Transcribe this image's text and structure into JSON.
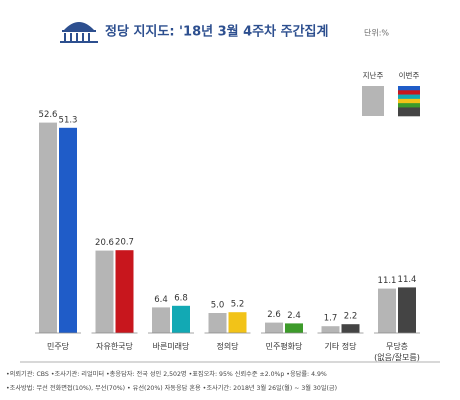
{
  "chart_data": {
    "type": "bar",
    "title": "정당 지지도: '18년 3월 4주차 주간집계",
    "unit": "단위:%",
    "categories": [
      "민주당",
      "자유한국당",
      "바른미래당",
      "정의당",
      "민주평화당",
      "기타 정당",
      "무당층\n(없음/잘모름)"
    ],
    "series": [
      {
        "name": "지난주",
        "color": "#b5b5b5",
        "values": [
          52.6,
          20.6,
          6.4,
          5.0,
          2.6,
          1.7,
          11.1
        ],
        "value_labels": [
          "52.6",
          "20.6",
          "6.4",
          "5.0",
          "2.6",
          "1.7",
          "11.1"
        ]
      },
      {
        "name": "이번주",
        "colors": [
          "#1f5cc8",
          "#c8161d",
          "#12a9b4",
          "#f2c318",
          "#3d9b2a",
          "#444444",
          "#444444"
        ],
        "values": [
          51.3,
          20.7,
          6.8,
          5.2,
          2.4,
          2.2,
          11.4
        ],
        "value_labels": [
          "51.3",
          "20.7",
          "6.8",
          "5.2",
          "2.4",
          "2.2",
          "11.4"
        ]
      }
    ],
    "ylim": [
      0,
      60
    ],
    "footer": [
      "•의뢰기관: CBS •조사기관: 리얼미터 •총응답자: 전국 성인 2,502명 •표집오차: 95% 신뢰수준 ±2.0%p •응답률: 4.9%",
      "•조사방법: 무선 전화면접(10%), 무선(70%) • 유선(20%) 자동응답 혼용 •조사기간: 2018년 3월 26일(월) ~ 3월 30일(금)"
    ]
  }
}
